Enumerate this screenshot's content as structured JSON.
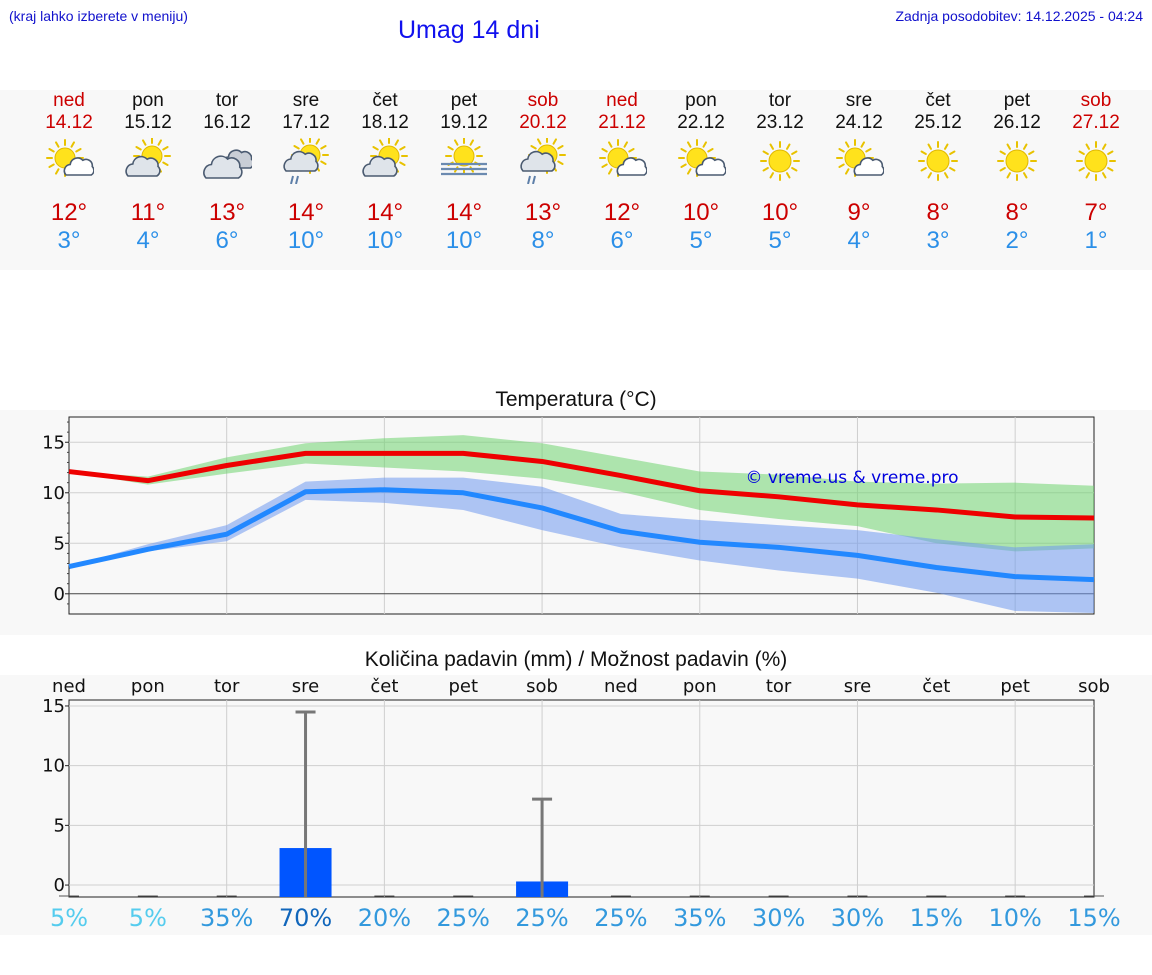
{
  "header": {
    "hint": "(kraj lahko izberete v meniju)",
    "title": "Umag 14 dni",
    "updated": "Zadnja posodobitev: 14.12.2025 - 04:24"
  },
  "days": [
    {
      "name": "ned",
      "date": "14.12",
      "icon": "sun-cloud-icon",
      "max": "12°",
      "min": "3°",
      "weekend": true
    },
    {
      "name": "pon",
      "date": "15.12",
      "icon": "cloud-sun-icon",
      "max": "11°",
      "min": "4°",
      "weekend": false
    },
    {
      "name": "tor",
      "date": "16.12",
      "icon": "cloudy-icon",
      "max": "13°",
      "min": "6°",
      "weekend": false
    },
    {
      "name": "sre",
      "date": "17.12",
      "icon": "rain-sun-icon",
      "max": "14°",
      "min": "10°",
      "weekend": false
    },
    {
      "name": "čet",
      "date": "18.12",
      "icon": "cloud-sun-icon",
      "max": "14°",
      "min": "10°",
      "weekend": false
    },
    {
      "name": "pet",
      "date": "19.12",
      "icon": "fog-sun-icon",
      "max": "14°",
      "min": "10°",
      "weekend": false
    },
    {
      "name": "sob",
      "date": "20.12",
      "icon": "rain-sun-icon",
      "max": "13°",
      "min": "8°",
      "weekend": true
    },
    {
      "name": "ned",
      "date": "21.12",
      "icon": "sun-cloud-icon",
      "max": "12°",
      "min": "6°",
      "weekend": true
    },
    {
      "name": "pon",
      "date": "22.12",
      "icon": "sun-cloud-icon",
      "max": "10°",
      "min": "5°",
      "weekend": false
    },
    {
      "name": "tor",
      "date": "23.12",
      "icon": "sun-icon",
      "max": "10°",
      "min": "5°",
      "weekend": false
    },
    {
      "name": "sre",
      "date": "24.12",
      "icon": "sun-cloud-icon",
      "max": "9°",
      "min": "4°",
      "weekend": false
    },
    {
      "name": "čet",
      "date": "25.12",
      "icon": "sun-icon",
      "max": "8°",
      "min": "3°",
      "weekend": false
    },
    {
      "name": "pet",
      "date": "26.12",
      "icon": "sun-icon",
      "max": "8°",
      "min": "2°",
      "weekend": false
    },
    {
      "name": "sob",
      "date": "27.12",
      "icon": "sun-icon",
      "max": "7°",
      "min": "1°",
      "weekend": true
    }
  ],
  "chart_data": [
    {
      "type": "line",
      "title": "Temperatura (°C)",
      "watermark": "© vreme.us & vreme.pro",
      "x": [
        0,
        1,
        2,
        3,
        4,
        5,
        6,
        7,
        8,
        9,
        10,
        11,
        12,
        13
      ],
      "ylim": [
        -2,
        17.5
      ],
      "yticks": [
        0,
        5,
        10,
        15
      ],
      "series": [
        {
          "name": "max",
          "color": "#ee0000",
          "values": [
            12.1,
            11.2,
            12.7,
            13.9,
            13.9,
            13.9,
            13.1,
            11.7,
            10.2,
            9.6,
            8.8,
            8.3,
            7.6,
            7.5
          ]
        },
        {
          "name": "min",
          "color": "#2288ff",
          "values": [
            2.7,
            4.4,
            5.9,
            10.1,
            10.3,
            10.0,
            8.5,
            6.2,
            5.1,
            4.6,
            3.8,
            2.6,
            1.7,
            1.4
          ]
        }
      ],
      "bands": [
        {
          "name": "max-range",
          "color": "#6fd46f",
          "lower": [
            12.1,
            10.8,
            11.9,
            12.9,
            12.5,
            12.1,
            11.4,
            10.1,
            8.3,
            7.4,
            6.7,
            5.0,
            4.2,
            4.5
          ],
          "upper": [
            12.1,
            11.6,
            13.5,
            14.9,
            15.4,
            15.7,
            14.9,
            13.5,
            12.1,
            11.8,
            11.1,
            10.9,
            11.0,
            10.7
          ]
        },
        {
          "name": "min-range",
          "color": "#6f99ee",
          "lower": [
            2.7,
            4.2,
            5.2,
            9.3,
            9.0,
            8.3,
            6.3,
            4.6,
            3.3,
            2.3,
            1.5,
            0.1,
            -1.7,
            -1.9
          ],
          "upper": [
            2.7,
            4.9,
            6.8,
            11.1,
            11.5,
            11.5,
            10.6,
            7.9,
            7.3,
            6.8,
            6.3,
            5.4,
            4.6,
            4.9
          ]
        }
      ]
    },
    {
      "type": "bar",
      "title": "Količina padavin (mm) / Možnost padavin (%)",
      "categories": [
        "ned",
        "pon",
        "tor",
        "sre",
        "čet",
        "pet",
        "sob",
        "ned",
        "pon",
        "tor",
        "sre",
        "čet",
        "pet",
        "sob"
      ],
      "values": [
        0,
        0,
        0,
        3.1,
        0,
        0,
        0.3,
        0,
        0,
        0,
        0,
        0,
        0,
        0
      ],
      "max_values": [
        0,
        0,
        0,
        14.5,
        0,
        0,
        7.2,
        0,
        0,
        0,
        0,
        0,
        0,
        0
      ],
      "chance": [
        "5%",
        "5%",
        "35%",
        "70%",
        "20%",
        "25%",
        "25%",
        "25%",
        "35%",
        "30%",
        "30%",
        "15%",
        "10%",
        "15%"
      ],
      "chance_colors": [
        "#55ccee",
        "#55ccee",
        "#3399dd",
        "#1166bb",
        "#3399dd",
        "#3399dd",
        "#3399dd",
        "#3399dd",
        "#3399dd",
        "#3399dd",
        "#3399dd",
        "#3399dd",
        "#3399dd",
        "#3399dd"
      ],
      "ylim": [
        -1,
        15.5
      ],
      "yticks": [
        0,
        5,
        10,
        15
      ],
      "bar_color": "#0055ff",
      "whisker_color": "#777777"
    }
  ]
}
